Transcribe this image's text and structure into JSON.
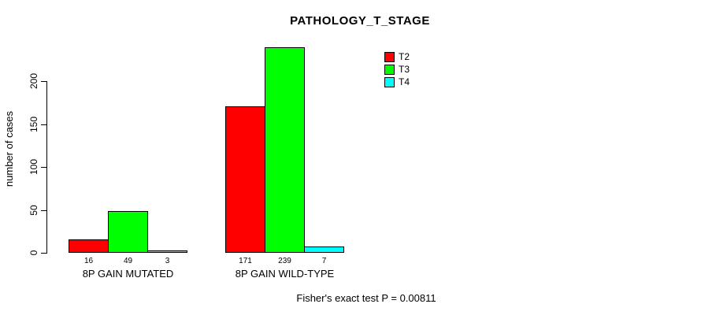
{
  "chart_data": {
    "type": "bar",
    "title": "PATHOLOGY_T_STAGE",
    "xlabel": "",
    "ylabel": "number of cases",
    "categories": [
      "8P GAIN MUTATED",
      "8P GAIN WILD-TYPE"
    ],
    "series": [
      {
        "name": "T2",
        "color": "#ff0000",
        "values": [
          16,
          171
        ]
      },
      {
        "name": "T3",
        "color": "#00ff00",
        "values": [
          49,
          239
        ]
      },
      {
        "name": "T4",
        "color": "#00ffff",
        "values": [
          3,
          7
        ]
      }
    ],
    "bar_value_labels": [
      [
        16,
        49,
        3
      ],
      [
        171,
        239,
        7
      ]
    ],
    "yticks": [
      0,
      50,
      100,
      150,
      200
    ],
    "ylim": [
      0,
      240
    ],
    "grid": false,
    "legend": {
      "position": "top-right-inside",
      "entries": [
        {
          "label": "T2",
          "color": "#ff0000"
        },
        {
          "label": "T3",
          "color": "#00ff00"
        },
        {
          "label": "T4",
          "color": "#00ffff"
        }
      ]
    },
    "annotation": "Fisher's exact test P = 0.00811",
    "background_color": "#ffffff",
    "text_color": "#000000"
  }
}
